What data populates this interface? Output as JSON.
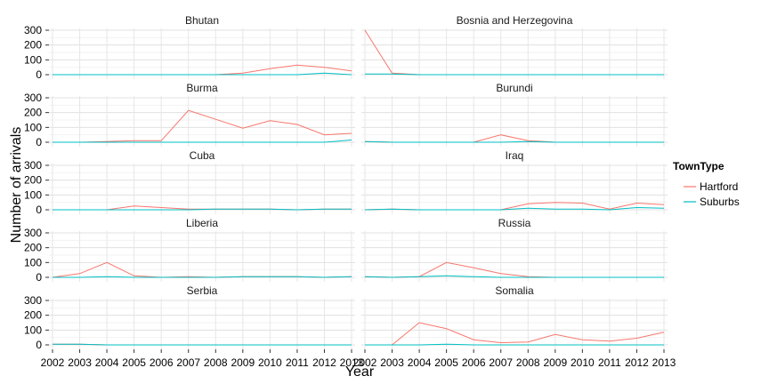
{
  "chart_data": {
    "type": "line",
    "xlabel": "Year",
    "ylabel": "Number of arrivals",
    "x": [
      2002,
      2003,
      2004,
      2005,
      2006,
      2007,
      2008,
      2009,
      2010,
      2011,
      2012,
      2013
    ],
    "x_tick_labels": [
      "2002",
      "2003",
      "2004",
      "2005",
      "2006",
      "2007",
      "2008",
      "2009",
      "2010",
      "2011",
      "2012",
      "2013"
    ],
    "ylim": [
      0,
      300
    ],
    "y_ticks": [
      0,
      100,
      200,
      300
    ],
    "grid": true,
    "facet_layout": "5 rows x 2 columns",
    "legend": {
      "title": "TownType",
      "position": "right",
      "entries": [
        {
          "name": "Hartford",
          "color": "#F8766D"
        },
        {
          "name": "Suburbs",
          "color": "#00BFC4"
        }
      ]
    },
    "panels": [
      {
        "title": "Bhutan",
        "series": [
          {
            "name": "Hartford",
            "values": [
              0,
              0,
              0,
              0,
              0,
              0,
              0,
              10,
              40,
              65,
              50,
              25
            ]
          },
          {
            "name": "Suburbs",
            "values": [
              0,
              0,
              0,
              0,
              0,
              0,
              0,
              0,
              0,
              0,
              10,
              0
            ]
          }
        ]
      },
      {
        "title": "Bosnia and Herzegovina",
        "series": [
          {
            "name": "Hartford",
            "values": [
              300,
              10,
              0,
              0,
              0,
              0,
              0,
              0,
              0,
              0,
              0,
              0
            ]
          },
          {
            "name": "Suburbs",
            "values": [
              5,
              5,
              0,
              0,
              0,
              0,
              0,
              0,
              0,
              0,
              0,
              0
            ]
          }
        ]
      },
      {
        "title": "Burma",
        "series": [
          {
            "name": "Hartford",
            "values": [
              0,
              0,
              5,
              10,
              10,
              215,
              155,
              95,
              145,
              120,
              50,
              60
            ]
          },
          {
            "name": "Suburbs",
            "values": [
              0,
              0,
              0,
              0,
              0,
              0,
              0,
              0,
              0,
              0,
              0,
              15
            ]
          }
        ]
      },
      {
        "title": "Burundi",
        "series": [
          {
            "name": "Hartford",
            "values": [
              5,
              0,
              0,
              0,
              0,
              50,
              10,
              0,
              0,
              0,
              0,
              0
            ]
          },
          {
            "name": "Suburbs",
            "values": [
              5,
              0,
              0,
              0,
              0,
              0,
              5,
              0,
              0,
              0,
              0,
              0
            ]
          }
        ]
      },
      {
        "title": "Cuba",
        "series": [
          {
            "name": "Hartford",
            "values": [
              0,
              0,
              0,
              25,
              15,
              5,
              5,
              5,
              5,
              0,
              5,
              5
            ]
          },
          {
            "name": "Suburbs",
            "values": [
              0,
              0,
              0,
              0,
              0,
              0,
              5,
              5,
              5,
              0,
              5,
              5
            ]
          }
        ]
      },
      {
        "title": "Iraq",
        "series": [
          {
            "name": "Hartford",
            "values": [
              0,
              5,
              0,
              0,
              0,
              0,
              40,
              50,
              45,
              5,
              45,
              35
            ]
          },
          {
            "name": "Suburbs",
            "values": [
              0,
              5,
              0,
              0,
              0,
              0,
              10,
              5,
              5,
              0,
              15,
              10
            ]
          }
        ]
      },
      {
        "title": "Liberia",
        "series": [
          {
            "name": "Hartford",
            "values": [
              0,
              25,
              100,
              10,
              0,
              5,
              0,
              5,
              5,
              5,
              0,
              5
            ]
          },
          {
            "name": "Suburbs",
            "values": [
              0,
              0,
              5,
              0,
              0,
              0,
              0,
              5,
              5,
              5,
              0,
              5
            ]
          }
        ]
      },
      {
        "title": "Russia",
        "series": [
          {
            "name": "Hartford",
            "values": [
              5,
              0,
              5,
              100,
              65,
              25,
              5,
              0,
              0,
              0,
              0,
              0
            ]
          },
          {
            "name": "Suburbs",
            "values": [
              5,
              0,
              5,
              10,
              5,
              0,
              0,
              0,
              0,
              0,
              0,
              0
            ]
          }
        ]
      },
      {
        "title": "Serbia",
        "series": [
          {
            "name": "Hartford",
            "values": [
              5,
              5,
              0,
              0,
              0,
              0,
              0,
              0,
              0,
              0,
              0,
              0
            ]
          },
          {
            "name": "Suburbs",
            "values": [
              5,
              5,
              0,
              0,
              0,
              0,
              0,
              0,
              0,
              0,
              0,
              0
            ]
          }
        ]
      },
      {
        "title": "Somalia",
        "series": [
          {
            "name": "Hartford",
            "values": [
              0,
              0,
              150,
              110,
              35,
              15,
              20,
              70,
              35,
              25,
              45,
              85
            ]
          },
          {
            "name": "Suburbs",
            "values": [
              0,
              0,
              0,
              5,
              0,
              0,
              0,
              0,
              0,
              0,
              0,
              0
            ]
          }
        ]
      }
    ]
  }
}
